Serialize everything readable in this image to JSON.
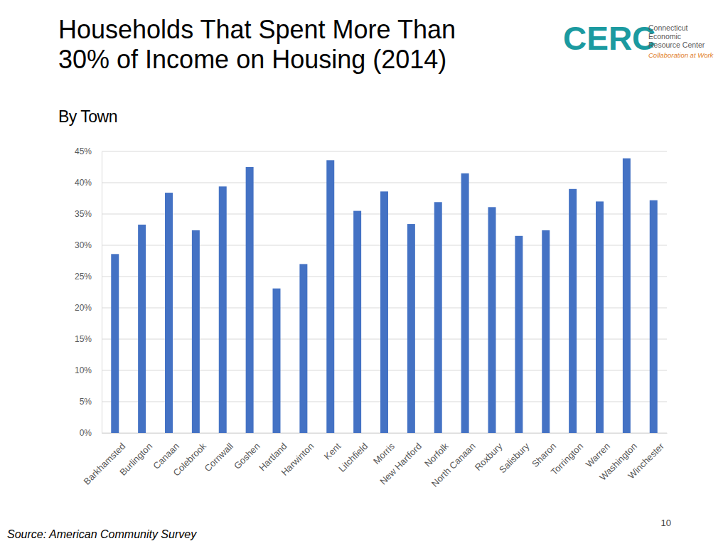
{
  "chart_data": {
    "type": "bar",
    "title": "Households That Spent More Than 30% of Income on Housing (2014)",
    "subtitle": "By Town",
    "categories": [
      "Barkhamsted",
      "Burlington",
      "Canaan",
      "Colebrook",
      "Cornwall",
      "Goshen",
      "Hartland",
      "Harwinton",
      "Kent",
      "Litchfield",
      "Morris",
      "New Hartford",
      "Norfolk",
      "North Canaan",
      "Roxbury",
      "Salisbury",
      "Sharon",
      "Torrington",
      "Warren",
      "Washington",
      "Winchester"
    ],
    "values": [
      28.6,
      33.3,
      38.4,
      32.4,
      39.4,
      42.5,
      23.1,
      27.0,
      43.6,
      35.5,
      38.6,
      33.4,
      36.9,
      41.5,
      36.1,
      31.5,
      32.4,
      39.0,
      37.0,
      43.9,
      37.2
    ],
    "color": "#4472c4",
    "ylim": [
      0,
      45
    ],
    "yticks": [
      {
        "value": 0,
        "label": "0%"
      },
      {
        "value": 5,
        "label": "5%"
      },
      {
        "value": 10,
        "label": "10%"
      },
      {
        "value": 15,
        "label": "15%"
      },
      {
        "value": 20,
        "label": "20%"
      },
      {
        "value": 25,
        "label": "25%"
      },
      {
        "value": 30,
        "label": "30%"
      },
      {
        "value": 35,
        "label": "35%"
      },
      {
        "value": 40,
        "label": "40%"
      },
      {
        "value": 45,
        "label": "45%"
      }
    ],
    "grid": true,
    "annotations": [
      "CERC",
      "Connecticut",
      "Economic",
      "Resource Center",
      "Collaboration at Work",
      "Source: American Community Survey",
      "10"
    ]
  }
}
